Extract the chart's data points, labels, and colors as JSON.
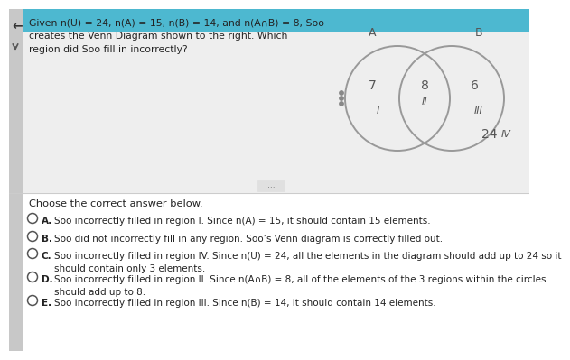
{
  "problem_text": "Given n(U) = 24, n(A) = 15, n(B) = 14, and n(A∩B) = 8, Soo\ncreates the Venn Diagram shown to the right. Which\nregion did Soo fill in incorrectly?",
  "venn_label_A": "A",
  "venn_label_B": "B",
  "region_I_label": "I",
  "region_I_value": "7",
  "region_II_label": "II",
  "region_II_value": "8",
  "region_III_label": "III",
  "region_III_value": "6",
  "region_IV_label": "IV",
  "region_IV_value": "24",
  "choose_text": "Choose the correct answer below.",
  "choices": [
    {
      "letter": "A.",
      "text": "Soo incorrectly filled in region I. Since n(A) = 15, it should contain 15 elements."
    },
    {
      "letter": "B.",
      "text": "Soo did not incorrectly fill in any region. Soo’s Venn diagram is correctly filled out."
    },
    {
      "letter": "C.",
      "text": "Soo incorrectly filled in region IV. Since n(U) = 24, all the elements in the diagram should add up to 24 so it\nshould contain only 3 elements."
    },
    {
      "letter": "D.",
      "text": "Soo incorrectly filled in region II. Since n(A∩B) = 8, all of the elements of the 3 regions within the circles\nshould add up to 8."
    },
    {
      "letter": "E.",
      "text": "Soo incorrectly filled in region III. Since n(B) = 14, it should contain 14 elements."
    }
  ],
  "top_banner_color": "#4db8d0",
  "bg_white": "#ffffff",
  "bg_gray_top": "#d8d8d8",
  "left_bar_color": "#b0b0b0",
  "circle_color": "#999999",
  "text_dark": "#222222",
  "text_medium": "#555555",
  "divider_color": "#cccccc"
}
